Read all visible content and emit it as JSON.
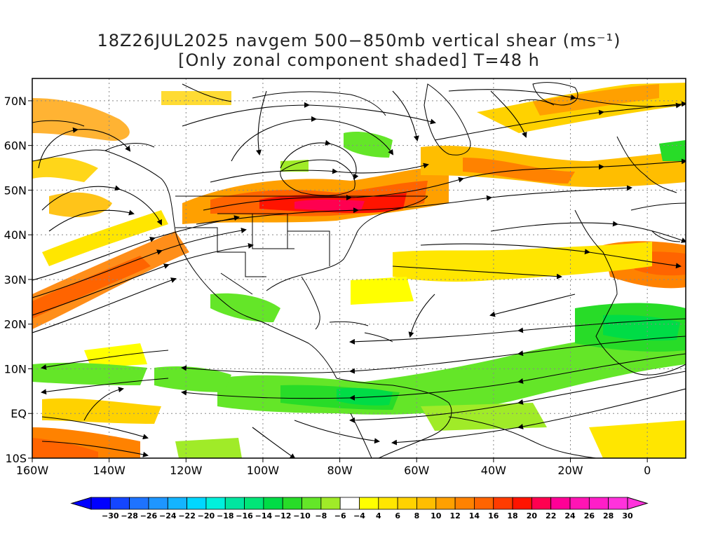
{
  "title": {
    "line1": "18Z26JUL2025 navgem 500−850mb vertical shear (ms⁻¹)",
    "line2": "[Only zonal component shaded] T=48 h"
  },
  "map": {
    "lat_labels": [
      "70N",
      "60N",
      "50N",
      "40N",
      "30N",
      "20N",
      "10N",
      "EQ",
      "10S"
    ],
    "lon_labels": [
      "160W",
      "140W",
      "120W",
      "100W",
      "80W",
      "60W",
      "40W",
      "20W",
      "0"
    ],
    "lon_range": [
      -160,
      10
    ],
    "lat_range": [
      -10,
      75
    ],
    "grid": "dotted"
  },
  "colorbar": {
    "labels": [
      "−30",
      "−28",
      "−26",
      "−24",
      "−22",
      "−20",
      "−18",
      "−16",
      "−14",
      "−12",
      "−10",
      "−8",
      "−6",
      "−4",
      "4",
      "6",
      "8",
      "10",
      "12",
      "14",
      "16",
      "18",
      "20",
      "22",
      "24",
      "26",
      "28",
      "30"
    ],
    "colors": [
      "#0000ff",
      "#1446ff",
      "#1e73ff",
      "#1e96ff",
      "#14b4ff",
      "#00d7ff",
      "#00f0dc",
      "#00e6a0",
      "#00e678",
      "#00dc46",
      "#28dc28",
      "#64e628",
      "#a0eb28",
      "#ffffff",
      "#ffff00",
      "#ffe600",
      "#ffd200",
      "#ffbe00",
      "#ffa000",
      "#ff8200",
      "#ff6400",
      "#ff3c00",
      "#ff1400",
      "#ff0050",
      "#ff0096",
      "#ff14b4",
      "#ff1ec8",
      "#ff32dc"
    ]
  }
}
